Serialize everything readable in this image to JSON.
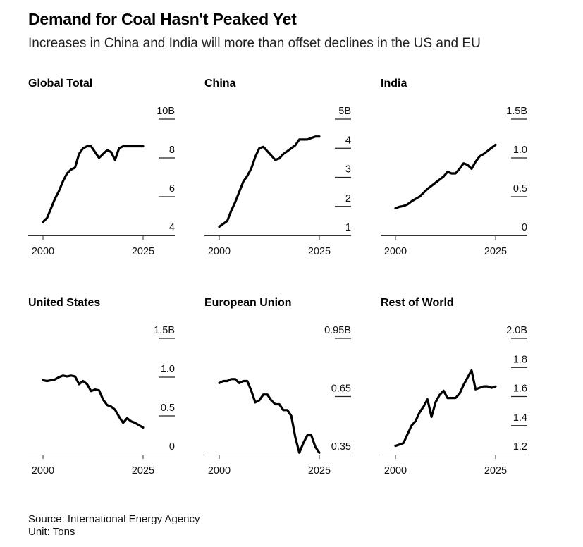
{
  "header": {
    "title": "Demand for Coal Hasn't Peaked Yet",
    "subtitle": "Increases in China and India will more than offset declines in the US and EU"
  },
  "footer": {
    "source": "Source: International Energy Agency",
    "unit": "Unit: Tons"
  },
  "chart_data": [
    {
      "type": "line",
      "title": "Global Total",
      "xlabel": "",
      "ylabel": "",
      "x_ticks": [
        "2000",
        "2025"
      ],
      "y_ticks": [
        {
          "value": 4,
          "label": "4"
        },
        {
          "value": 6,
          "label": "6"
        },
        {
          "value": 8,
          "label": "8"
        },
        {
          "value": 10,
          "label": "10B"
        }
      ],
      "ylim": [
        4,
        10
      ],
      "xlim": [
        2000,
        2028
      ],
      "x": [
        2000,
        2001,
        2002,
        2003,
        2004,
        2005,
        2006,
        2007,
        2008,
        2009,
        2010,
        2011,
        2012,
        2013,
        2014,
        2015,
        2016,
        2017,
        2018,
        2019,
        2020,
        2021,
        2022,
        2023,
        2024,
        2025
      ],
      "values": [
        4.7,
        4.9,
        5.4,
        5.9,
        6.3,
        6.8,
        7.2,
        7.4,
        7.5,
        8.2,
        8.5,
        8.6,
        8.6,
        8.3,
        8.0,
        8.2,
        8.4,
        8.3,
        7.9,
        8.5,
        8.6,
        8.6,
        8.6,
        8.6,
        8.6,
        8.6
      ]
    },
    {
      "type": "line",
      "title": "China",
      "xlabel": "",
      "ylabel": "",
      "x_ticks": [
        "2000",
        "2025"
      ],
      "y_ticks": [
        {
          "value": 1,
          "label": "1"
        },
        {
          "value": 2,
          "label": "2"
        },
        {
          "value": 3,
          "label": "3"
        },
        {
          "value": 4,
          "label": "4"
        },
        {
          "value": 5,
          "label": "5B"
        }
      ],
      "ylim": [
        1,
        5
      ],
      "xlim": [
        2000,
        2028
      ],
      "x": [
        2000,
        2001,
        2002,
        2003,
        2004,
        2005,
        2006,
        2007,
        2008,
        2009,
        2010,
        2011,
        2012,
        2013,
        2014,
        2015,
        2016,
        2017,
        2018,
        2019,
        2020,
        2021,
        2022,
        2023,
        2024,
        2025
      ],
      "values": [
        1.3,
        1.4,
        1.5,
        1.85,
        2.15,
        2.5,
        2.85,
        3.05,
        3.3,
        3.7,
        4.0,
        4.05,
        3.9,
        3.75,
        3.6,
        3.65,
        3.8,
        3.9,
        4.0,
        4.1,
        4.3,
        4.3,
        4.3,
        4.35,
        4.4,
        4.4
      ]
    },
    {
      "type": "line",
      "title": "India",
      "xlabel": "",
      "ylabel": "",
      "x_ticks": [
        "2000",
        "2025"
      ],
      "y_ticks": [
        {
          "value": 0,
          "label": "0"
        },
        {
          "value": 0.5,
          "label": "0.5"
        },
        {
          "value": 1.0,
          "label": "1.0"
        },
        {
          "value": 1.5,
          "label": "1.5B"
        }
      ],
      "ylim": [
        0,
        1.5
      ],
      "xlim": [
        2000,
        2028
      ],
      "x": [
        2000,
        2001,
        2002,
        2003,
        2004,
        2005,
        2006,
        2007,
        2008,
        2009,
        2010,
        2011,
        2012,
        2013,
        2014,
        2015,
        2016,
        2017,
        2018,
        2019,
        2020,
        2021,
        2022,
        2023,
        2024,
        2025
      ],
      "values": [
        0.35,
        0.37,
        0.38,
        0.4,
        0.44,
        0.47,
        0.5,
        0.55,
        0.6,
        0.64,
        0.68,
        0.72,
        0.76,
        0.82,
        0.8,
        0.8,
        0.86,
        0.93,
        0.91,
        0.86,
        0.95,
        1.02,
        1.05,
        1.09,
        1.13,
        1.17
      ]
    },
    {
      "type": "line",
      "title": "United States",
      "xlabel": "",
      "ylabel": "",
      "x_ticks": [
        "2000",
        "2025"
      ],
      "y_ticks": [
        {
          "value": 0,
          "label": "0"
        },
        {
          "value": 0.5,
          "label": "0.5"
        },
        {
          "value": 1.0,
          "label": "1.0"
        },
        {
          "value": 1.5,
          "label": "1.5B"
        }
      ],
      "ylim": [
        0,
        1.5
      ],
      "xlim": [
        2000,
        2028
      ],
      "x": [
        2000,
        2001,
        2002,
        2003,
        2004,
        2005,
        2006,
        2007,
        2008,
        2009,
        2010,
        2011,
        2012,
        2013,
        2014,
        2015,
        2016,
        2017,
        2018,
        2019,
        2020,
        2021,
        2022,
        2023,
        2024,
        2025
      ],
      "values": [
        0.96,
        0.95,
        0.96,
        0.97,
        1.0,
        1.02,
        1.01,
        1.02,
        1.01,
        0.91,
        0.95,
        0.91,
        0.82,
        0.84,
        0.83,
        0.71,
        0.64,
        0.62,
        0.58,
        0.49,
        0.41,
        0.47,
        0.43,
        0.41,
        0.38,
        0.35
      ]
    },
    {
      "type": "line",
      "title": "European Union",
      "xlabel": "",
      "ylabel": "",
      "x_ticks": [
        "2000",
        "2025"
      ],
      "y_ticks": [
        {
          "value": 0.35,
          "label": "0.35"
        },
        {
          "value": 0.65,
          "label": "0.65"
        },
        {
          "value": 0.95,
          "label": "0.95B"
        }
      ],
      "ylim": [
        0.35,
        0.95
      ],
      "xlim": [
        2000,
        2028
      ],
      "x": [
        2000,
        2001,
        2002,
        2003,
        2004,
        2005,
        2006,
        2007,
        2008,
        2009,
        2010,
        2011,
        2012,
        2013,
        2014,
        2015,
        2016,
        2017,
        2018,
        2019,
        2020,
        2021,
        2022,
        2023,
        2024,
        2025
      ],
      "values": [
        0.72,
        0.73,
        0.73,
        0.74,
        0.74,
        0.72,
        0.73,
        0.73,
        0.68,
        0.62,
        0.63,
        0.66,
        0.66,
        0.63,
        0.61,
        0.61,
        0.58,
        0.58,
        0.55,
        0.44,
        0.36,
        0.41,
        0.45,
        0.45,
        0.39,
        0.36
      ]
    },
    {
      "type": "line",
      "title": "Rest of World",
      "xlabel": "",
      "ylabel": "",
      "x_ticks": [
        "2000",
        "2025"
      ],
      "y_ticks": [
        {
          "value": 1.2,
          "label": "1.2"
        },
        {
          "value": 1.4,
          "label": "1.4"
        },
        {
          "value": 1.6,
          "label": "1.6"
        },
        {
          "value": 1.8,
          "label": "1.8"
        },
        {
          "value": 2.0,
          "label": "2.0B"
        }
      ],
      "ylim": [
        1.2,
        2.0
      ],
      "xlim": [
        2000,
        2028
      ],
      "x": [
        2000,
        2001,
        2002,
        2003,
        2004,
        2005,
        2006,
        2007,
        2008,
        2009,
        2010,
        2011,
        2012,
        2013,
        2014,
        2015,
        2016,
        2017,
        2018,
        2019,
        2020,
        2021,
        2022,
        2023,
        2024,
        2025
      ],
      "values": [
        1.26,
        1.27,
        1.28,
        1.34,
        1.4,
        1.43,
        1.49,
        1.53,
        1.58,
        1.46,
        1.56,
        1.61,
        1.64,
        1.59,
        1.59,
        1.59,
        1.62,
        1.68,
        1.73,
        1.78,
        1.65,
        1.66,
        1.67,
        1.67,
        1.66,
        1.67
      ]
    }
  ]
}
